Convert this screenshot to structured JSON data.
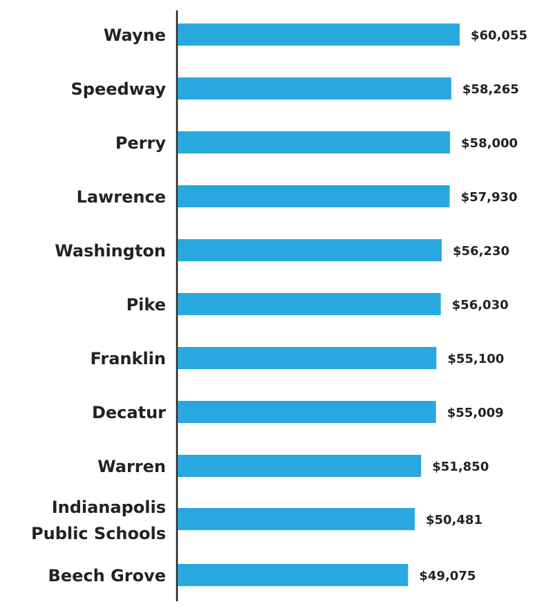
{
  "chart_data": {
    "type": "bar",
    "orientation": "horizontal",
    "title": "",
    "xlabel": "",
    "ylabel": "",
    "bar_color": "#29A8E0",
    "categories": [
      [
        "Wayne"
      ],
      [
        "Speedway"
      ],
      [
        "Perry"
      ],
      [
        "Lawrence"
      ],
      [
        "Washington"
      ],
      [
        "Pike"
      ],
      [
        "Franklin"
      ],
      [
        "Decatur"
      ],
      [
        "Warren"
      ],
      [
        "Indianapolis",
        "Public Schools"
      ],
      [
        "Beech Grove"
      ]
    ],
    "values": [
      60055,
      58265,
      58000,
      57930,
      56230,
      56030,
      55100,
      55009,
      51850,
      50481,
      49075
    ],
    "value_labels": [
      "$60,055",
      "$58,265",
      "$58,000",
      "$57,930",
      "$56,230",
      "$56,030",
      "$55,100",
      "$55,009",
      "$51,850",
      "$50,481",
      "$49,075"
    ],
    "xlim": [
      0,
      60055
    ]
  }
}
